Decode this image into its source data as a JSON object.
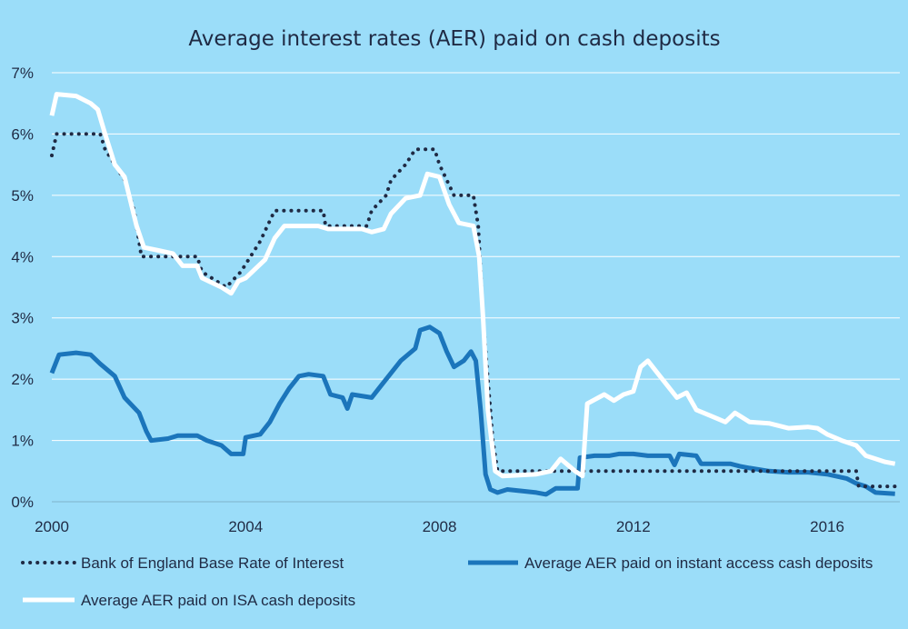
{
  "chart_data": {
    "type": "line",
    "title": "Average interest rates (AER) paid on cash deposits",
    "xlabel": "",
    "ylabel": "",
    "xlim": [
      2000,
      2017.5
    ],
    "ylim": [
      0,
      7
    ],
    "x_ticks": [
      {
        "value": 2000,
        "label": "2000"
      },
      {
        "value": 2004,
        "label": "2004"
      },
      {
        "value": 2008,
        "label": "2008"
      },
      {
        "value": 2012,
        "label": "2012"
      },
      {
        "value": 2016,
        "label": "2016"
      }
    ],
    "y_ticks": [
      {
        "value": 0,
        "label": "0%"
      },
      {
        "value": 1,
        "label": "1%"
      },
      {
        "value": 2,
        "label": "2%"
      },
      {
        "value": 3,
        "label": "3%"
      },
      {
        "value": 4,
        "label": "4%"
      },
      {
        "value": 5,
        "label": "5%"
      },
      {
        "value": 6,
        "label": "6%"
      },
      {
        "value": 7,
        "label": "7%"
      }
    ],
    "grid": "horizontal",
    "legend_position": "bottom",
    "series": [
      {
        "name": "Bank of England Base Rate of Interest",
        "color": "#1F2A44",
        "style": "dotted",
        "points": [
          [
            2000.0,
            5.65
          ],
          [
            2000.1,
            6.0
          ],
          [
            2001.0,
            6.0
          ],
          [
            2001.1,
            5.75
          ],
          [
            2001.3,
            5.5
          ],
          [
            2001.5,
            5.25
          ],
          [
            2001.7,
            4.75
          ],
          [
            2001.85,
            4.0
          ],
          [
            2003.0,
            4.0
          ],
          [
            2003.1,
            3.75
          ],
          [
            2003.6,
            3.5
          ],
          [
            2003.9,
            3.75
          ],
          [
            2004.1,
            4.0
          ],
          [
            2004.3,
            4.25
          ],
          [
            2004.45,
            4.5
          ],
          [
            2004.6,
            4.75
          ],
          [
            2005.6,
            4.75
          ],
          [
            2005.65,
            4.5
          ],
          [
            2006.5,
            4.5
          ],
          [
            2006.6,
            4.75
          ],
          [
            2006.9,
            5.0
          ],
          [
            2007.0,
            5.25
          ],
          [
            2007.3,
            5.5
          ],
          [
            2007.5,
            5.75
          ],
          [
            2007.9,
            5.75
          ],
          [
            2008.0,
            5.5
          ],
          [
            2008.15,
            5.25
          ],
          [
            2008.3,
            5.0
          ],
          [
            2008.7,
            5.0
          ],
          [
            2008.8,
            4.5
          ],
          [
            2008.9,
            3.0
          ],
          [
            2009.0,
            2.0
          ],
          [
            2009.1,
            1.0
          ],
          [
            2009.2,
            0.5
          ],
          [
            2016.6,
            0.5
          ],
          [
            2016.65,
            0.25
          ],
          [
            2017.4,
            0.25
          ]
        ]
      },
      {
        "name": "Average AER paid on instant access cash deposits",
        "color": "#1B75BB",
        "style": "solid",
        "points": [
          [
            2000.0,
            2.1
          ],
          [
            2000.15,
            2.4
          ],
          [
            2000.5,
            2.43
          ],
          [
            2000.8,
            2.4
          ],
          [
            2001.0,
            2.25
          ],
          [
            2001.3,
            2.05
          ],
          [
            2001.5,
            1.7
          ],
          [
            2001.8,
            1.45
          ],
          [
            2001.95,
            1.15
          ],
          [
            2002.05,
            1.0
          ],
          [
            2002.4,
            1.03
          ],
          [
            2002.6,
            1.08
          ],
          [
            2003.0,
            1.08
          ],
          [
            2003.2,
            1.0
          ],
          [
            2003.5,
            0.92
          ],
          [
            2003.7,
            0.78
          ],
          [
            2003.95,
            0.78
          ],
          [
            2004.0,
            1.05
          ],
          [
            2004.3,
            1.1
          ],
          [
            2004.5,
            1.3
          ],
          [
            2004.7,
            1.6
          ],
          [
            2004.9,
            1.85
          ],
          [
            2005.1,
            2.05
          ],
          [
            2005.3,
            2.08
          ],
          [
            2005.6,
            2.05
          ],
          [
            2005.75,
            1.75
          ],
          [
            2006.0,
            1.7
          ],
          [
            2006.1,
            1.52
          ],
          [
            2006.2,
            1.75
          ],
          [
            2006.6,
            1.7
          ],
          [
            2006.8,
            1.9
          ],
          [
            2007.0,
            2.1
          ],
          [
            2007.2,
            2.3
          ],
          [
            2007.5,
            2.5
          ],
          [
            2007.6,
            2.8
          ],
          [
            2007.8,
            2.85
          ],
          [
            2008.0,
            2.75
          ],
          [
            2008.15,
            2.45
          ],
          [
            2008.3,
            2.2
          ],
          [
            2008.5,
            2.3
          ],
          [
            2008.65,
            2.45
          ],
          [
            2008.75,
            2.3
          ],
          [
            2008.85,
            1.5
          ],
          [
            2008.95,
            0.45
          ],
          [
            2009.05,
            0.2
          ],
          [
            2009.2,
            0.15
          ],
          [
            2009.4,
            0.2
          ],
          [
            2010.0,
            0.15
          ],
          [
            2010.2,
            0.12
          ],
          [
            2010.4,
            0.22
          ],
          [
            2010.6,
            0.22
          ],
          [
            2010.85,
            0.22
          ],
          [
            2010.9,
            0.72
          ],
          [
            2011.2,
            0.75
          ],
          [
            2011.5,
            0.75
          ],
          [
            2011.7,
            0.78
          ],
          [
            2012.0,
            0.78
          ],
          [
            2012.3,
            0.75
          ],
          [
            2012.6,
            0.75
          ],
          [
            2012.75,
            0.75
          ],
          [
            2012.85,
            0.6
          ],
          [
            2012.95,
            0.78
          ],
          [
            2013.3,
            0.75
          ],
          [
            2013.4,
            0.62
          ],
          [
            2014.0,
            0.62
          ],
          [
            2014.2,
            0.58
          ],
          [
            2014.4,
            0.55
          ],
          [
            2014.8,
            0.5
          ],
          [
            2015.2,
            0.48
          ],
          [
            2015.6,
            0.48
          ],
          [
            2016.0,
            0.45
          ],
          [
            2016.4,
            0.38
          ],
          [
            2016.6,
            0.3
          ],
          [
            2016.8,
            0.25
          ],
          [
            2017.0,
            0.15
          ],
          [
            2017.4,
            0.13
          ]
        ]
      },
      {
        "name": "Average AER paid on ISA cash deposits",
        "color": "#FFFFFF",
        "style": "solid",
        "points": [
          [
            2000.0,
            6.3
          ],
          [
            2000.1,
            6.65
          ],
          [
            2000.5,
            6.62
          ],
          [
            2000.8,
            6.5
          ],
          [
            2000.95,
            6.4
          ],
          [
            2001.1,
            6.0
          ],
          [
            2001.3,
            5.5
          ],
          [
            2001.5,
            5.3
          ],
          [
            2001.75,
            4.5
          ],
          [
            2001.9,
            4.15
          ],
          [
            2002.2,
            4.1
          ],
          [
            2002.5,
            4.05
          ],
          [
            2002.7,
            3.85
          ],
          [
            2003.0,
            3.85
          ],
          [
            2003.1,
            3.65
          ],
          [
            2003.5,
            3.5
          ],
          [
            2003.7,
            3.4
          ],
          [
            2003.85,
            3.6
          ],
          [
            2004.0,
            3.65
          ],
          [
            2004.2,
            3.8
          ],
          [
            2004.4,
            3.95
          ],
          [
            2004.6,
            4.3
          ],
          [
            2004.8,
            4.5
          ],
          [
            2005.5,
            4.5
          ],
          [
            2005.7,
            4.45
          ],
          [
            2006.0,
            4.45
          ],
          [
            2006.4,
            4.45
          ],
          [
            2006.6,
            4.4
          ],
          [
            2006.85,
            4.45
          ],
          [
            2007.0,
            4.7
          ],
          [
            2007.3,
            4.95
          ],
          [
            2007.6,
            5.0
          ],
          [
            2007.75,
            5.35
          ],
          [
            2008.0,
            5.3
          ],
          [
            2008.2,
            4.85
          ],
          [
            2008.4,
            4.55
          ],
          [
            2008.7,
            4.5
          ],
          [
            2008.82,
            4.0
          ],
          [
            2008.9,
            3.0
          ],
          [
            2009.0,
            1.5
          ],
          [
            2009.15,
            0.5
          ],
          [
            2009.3,
            0.42
          ],
          [
            2010.0,
            0.45
          ],
          [
            2010.3,
            0.5
          ],
          [
            2010.5,
            0.7
          ],
          [
            2010.8,
            0.5
          ],
          [
            2010.95,
            0.42
          ],
          [
            2011.05,
            1.6
          ],
          [
            2011.4,
            1.75
          ],
          [
            2011.6,
            1.65
          ],
          [
            2011.8,
            1.75
          ],
          [
            2012.0,
            1.8
          ],
          [
            2012.15,
            2.2
          ],
          [
            2012.3,
            2.3
          ],
          [
            2012.5,
            2.1
          ],
          [
            2012.7,
            1.9
          ],
          [
            2012.9,
            1.7
          ],
          [
            2013.1,
            1.78
          ],
          [
            2013.3,
            1.5
          ],
          [
            2013.6,
            1.4
          ],
          [
            2013.9,
            1.3
          ],
          [
            2014.1,
            1.45
          ],
          [
            2014.4,
            1.3
          ],
          [
            2014.8,
            1.28
          ],
          [
            2015.2,
            1.2
          ],
          [
            2015.6,
            1.22
          ],
          [
            2015.8,
            1.2
          ],
          [
            2016.0,
            1.1
          ],
          [
            2016.3,
            1.0
          ],
          [
            2016.6,
            0.92
          ],
          [
            2016.8,
            0.75
          ],
          [
            2017.0,
            0.7
          ],
          [
            2017.2,
            0.65
          ],
          [
            2017.4,
            0.62
          ]
        ]
      }
    ]
  }
}
